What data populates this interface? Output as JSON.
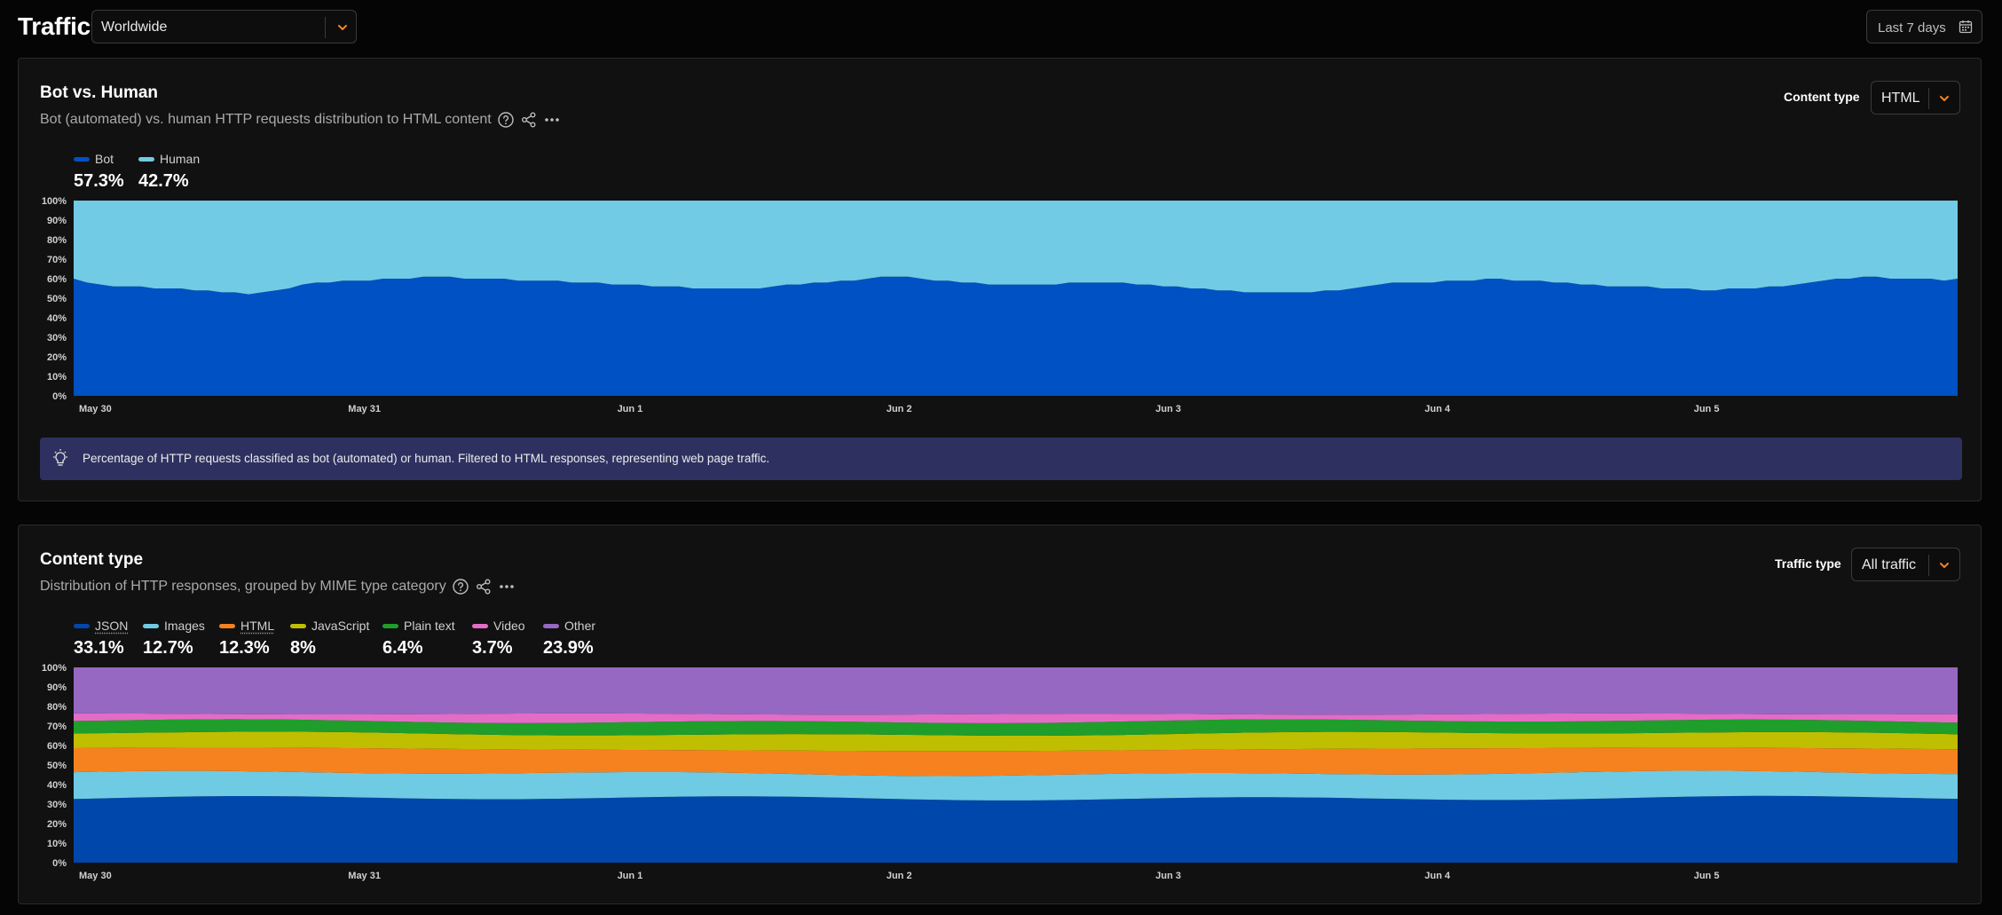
{
  "header": {
    "title": "Traffic",
    "location": "Worldwide",
    "date_range": "Last 7 days"
  },
  "colors": {
    "accent": "#f6821f",
    "bot": "#0051c3",
    "human": "#71cbe4",
    "insight_bg": "#2e3160"
  },
  "icons": [
    "chevron-down-icon",
    "calendar-icon",
    "help-icon",
    "share-icon",
    "more-icon",
    "lightbulb-icon"
  ],
  "bot_human": {
    "title": "Bot vs. Human",
    "subtitle": "Bot (automated) vs. human HTTP requests distribution to HTML content",
    "control_label": "Content type",
    "control_value": "HTML",
    "legend": [
      {
        "label": "Bot",
        "value": "57.3%",
        "color": "#0051c3"
      },
      {
        "label": "Human",
        "value": "42.7%",
        "color": "#71cbe4"
      }
    ],
    "insight": "Percentage of HTTP requests classified as bot (automated) or human. Filtered to HTML responses, representing web page traffic."
  },
  "content_type": {
    "title": "Content type",
    "subtitle": "Distribution of HTTP responses, grouped by MIME type category",
    "control_label": "Traffic type",
    "control_value": "All traffic",
    "legend": [
      {
        "label": "JSON",
        "value": "33.1%",
        "color": "#0047ab",
        "dotted": true
      },
      {
        "label": "Images",
        "value": "12.7%",
        "color": "#6ecbe3",
        "dotted": false
      },
      {
        "label": "HTML",
        "value": "12.3%",
        "color": "#f6821f",
        "dotted": true
      },
      {
        "label": "JavaScript",
        "value": "8%",
        "color": "#bfbe00",
        "dotted": false
      },
      {
        "label": "Plain text",
        "value": "6.4%",
        "color": "#1f9e2b",
        "dotted": false
      },
      {
        "label": "Video",
        "value": "3.7%",
        "color": "#e36cc6",
        "dotted": false
      },
      {
        "label": "Other",
        "value": "23.9%",
        "color": "#9668c2",
        "dotted": false
      }
    ]
  },
  "chart_data": [
    {
      "type": "area",
      "stacked": true,
      "percent": true,
      "x_ticks": [
        "May 30",
        "May 31",
        "Jun 1",
        "Jun 2",
        "Jun 3",
        "Jun 4",
        "Jun 5"
      ],
      "y_ticks": [
        "0%",
        "10%",
        "20%",
        "30%",
        "40%",
        "50%",
        "60%",
        "70%",
        "80%",
        "90%",
        "100%"
      ],
      "ylim": [
        0,
        100
      ],
      "x_count": 141,
      "series": [
        {
          "name": "Bot",
          "color": "#0051c3",
          "values": [
            60,
            58,
            57,
            56,
            56,
            56,
            55,
            55,
            55,
            54,
            54,
            53,
            53,
            52,
            53,
            54,
            55,
            57,
            58,
            58,
            59,
            59,
            59,
            60,
            60,
            60,
            61,
            61,
            61,
            60,
            60,
            60,
            60,
            59,
            59,
            59,
            59,
            58,
            58,
            58,
            57,
            57,
            57,
            56,
            56,
            56,
            55,
            55,
            55,
            55,
            55,
            55,
            56,
            57,
            57,
            58,
            58,
            59,
            59,
            60,
            61,
            61,
            61,
            60,
            59,
            59,
            58,
            58,
            57,
            57,
            57,
            57,
            57,
            57,
            58,
            58,
            58,
            58,
            58,
            57,
            57,
            56,
            56,
            55,
            55,
            54,
            54,
            53,
            53,
            53,
            53,
            53,
            53,
            54,
            54,
            55,
            56,
            57,
            58,
            58,
            58,
            58,
            59,
            59,
            59,
            60,
            60,
            59,
            59,
            59,
            58,
            58,
            57,
            57,
            56,
            56,
            56,
            56,
            55,
            55,
            55,
            54,
            54,
            55,
            55,
            55,
            56,
            56,
            57,
            58,
            59,
            60,
            60,
            61,
            61,
            60,
            60,
            60,
            60,
            59,
            60
          ]
        },
        {
          "name": "Human",
          "color": "#71cbe4",
          "values": [
            40,
            42,
            43,
            44,
            44,
            44,
            45,
            45,
            45,
            46,
            46,
            47,
            47,
            48,
            47,
            46,
            45,
            43,
            42,
            42,
            41,
            41,
            41,
            40,
            40,
            40,
            39,
            39,
            39,
            40,
            40,
            40,
            40,
            41,
            41,
            41,
            41,
            42,
            42,
            42,
            43,
            43,
            43,
            44,
            44,
            44,
            45,
            45,
            45,
            45,
            45,
            45,
            44,
            43,
            43,
            42,
            42,
            41,
            41,
            40,
            39,
            39,
            39,
            40,
            41,
            41,
            42,
            42,
            43,
            43,
            43,
            43,
            43,
            43,
            42,
            42,
            42,
            42,
            42,
            43,
            43,
            44,
            44,
            45,
            45,
            46,
            46,
            47,
            47,
            47,
            47,
            47,
            47,
            46,
            46,
            45,
            44,
            43,
            42,
            42,
            42,
            42,
            41,
            41,
            41,
            40,
            40,
            41,
            41,
            41,
            42,
            42,
            43,
            43,
            44,
            44,
            44,
            44,
            45,
            45,
            45,
            46,
            46,
            45,
            45,
            45,
            44,
            44,
            43,
            42,
            41,
            40,
            40,
            39,
            39,
            40,
            40,
            40,
            40,
            41,
            40
          ]
        }
      ]
    },
    {
      "type": "area",
      "stacked": true,
      "percent": true,
      "x_ticks": [
        "May 30",
        "May 31",
        "Jun 1",
        "Jun 2",
        "Jun 3",
        "Jun 4",
        "Jun 5"
      ],
      "y_ticks": [
        "0%",
        "10%",
        "20%",
        "30%",
        "40%",
        "50%",
        "60%",
        "70%",
        "80%",
        "90%",
        "100%"
      ],
      "ylim": [
        0,
        100
      ],
      "x_count": 141,
      "series": [
        {
          "name": "JSON",
          "color": "#0047ab",
          "base": 33,
          "amp": 0.8
        },
        {
          "name": "Images",
          "color": "#6ecbe3",
          "base": 12.7,
          "amp": 0.8
        },
        {
          "name": "HTML",
          "color": "#f6821f",
          "base": 12.3,
          "amp": 0.6
        },
        {
          "name": "JavaScript",
          "color": "#bfbe00",
          "base": 8,
          "amp": 0.4
        },
        {
          "name": "Plain text",
          "color": "#1f9e2b",
          "base": 6.4,
          "amp": 0.4
        },
        {
          "name": "Video",
          "color": "#e36cc6",
          "base": 3.7,
          "amp": 0.9
        },
        {
          "name": "Other",
          "color": "#9668c2",
          "base": 23.9,
          "amp": 0
        }
      ]
    }
  ]
}
